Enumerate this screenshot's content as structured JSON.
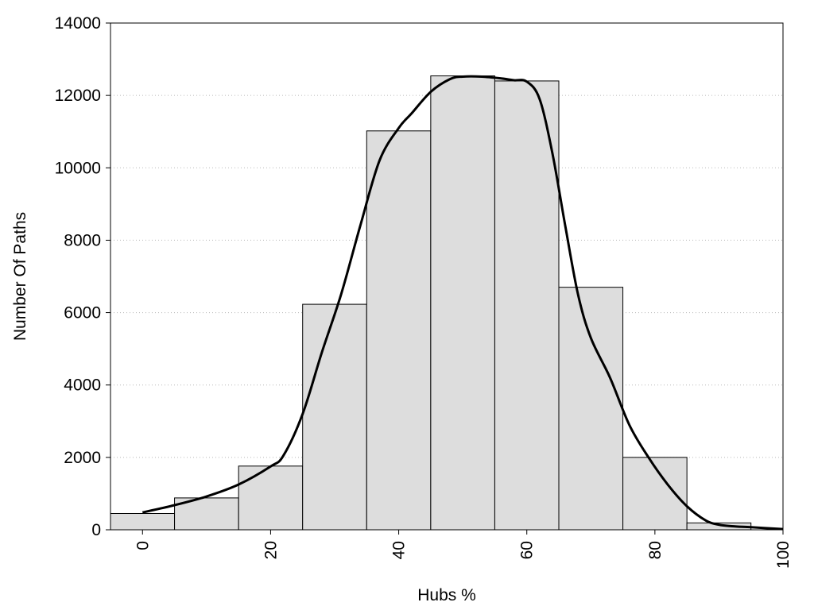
{
  "chart_data": {
    "type": "bar",
    "title": "",
    "xlabel": "Hubs %",
    "ylabel": "Number Of Paths",
    "xlim": [
      -5,
      100
    ],
    "ylim": [
      0,
      14000
    ],
    "x_ticks": [
      "0",
      "20",
      "40",
      "60",
      "80",
      "100"
    ],
    "y_ticks": [
      "0",
      "2000",
      "4000",
      "6000",
      "8000",
      "10000",
      "12000",
      "14000"
    ],
    "grid": "horizontal-dotted",
    "legend": "none",
    "bins": {
      "width": 10,
      "centers": [
        0,
        10,
        20,
        30,
        40,
        50,
        60,
        70,
        80,
        90
      ],
      "values": [
        450,
        880,
        1760,
        6230,
        11020,
        12540,
        12400,
        6700,
        2000,
        190
      ]
    },
    "curve": {
      "x": [
        0,
        5,
        10,
        15,
        20,
        22,
        25,
        28,
        31,
        34,
        37,
        40,
        42,
        45,
        48,
        50,
        53,
        56,
        58,
        60,
        62,
        64,
        66,
        68,
        70,
        73,
        76,
        79,
        82,
        85,
        88,
        90,
        92,
        95,
        100
      ],
      "y": [
        480,
        680,
        920,
        1250,
        1750,
        2050,
        3200,
        4900,
        6500,
        8400,
        10200,
        11100,
        11500,
        12100,
        12450,
        12520,
        12520,
        12470,
        12420,
        12380,
        11900,
        10400,
        8400,
        6500,
        5300,
        4200,
        2900,
        2000,
        1250,
        650,
        250,
        140,
        100,
        70,
        20
      ]
    },
    "colors": {
      "bar_fill": "#dddddd",
      "bar_stroke": "#000000",
      "curve": "#000000",
      "grid": "#b8b8b8"
    }
  }
}
